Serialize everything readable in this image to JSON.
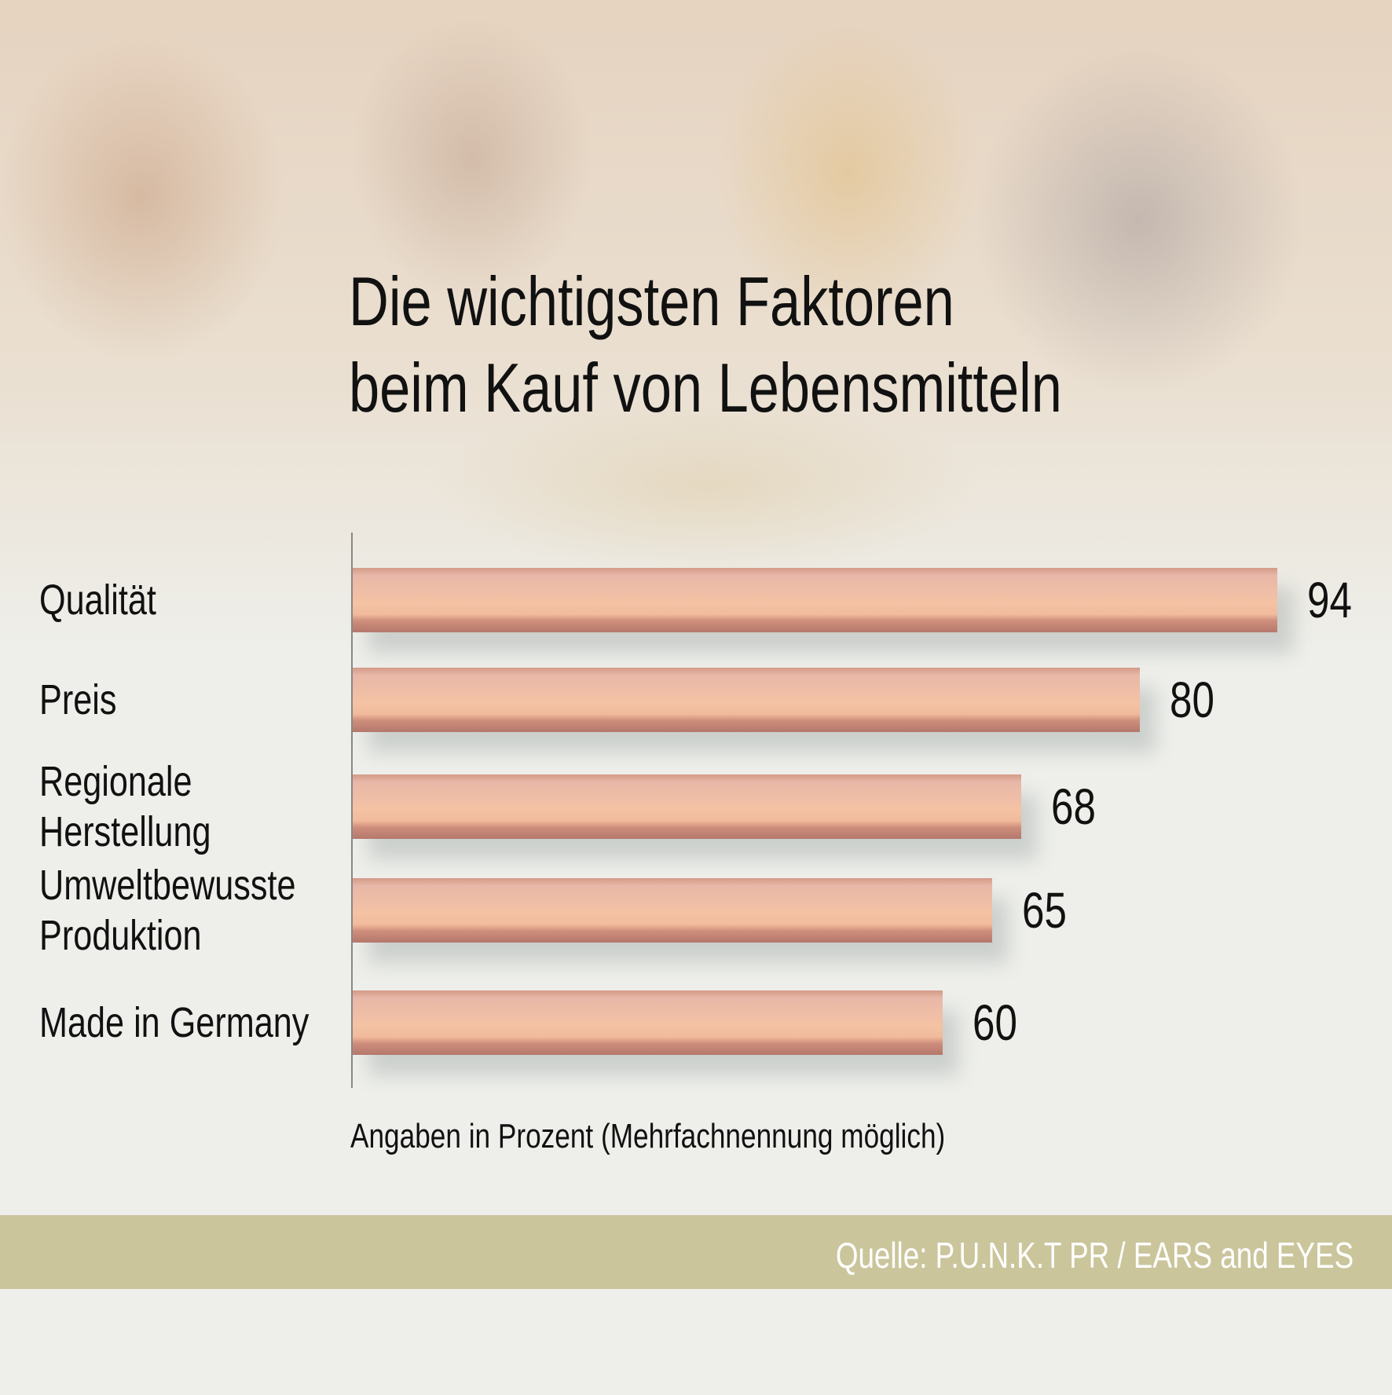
{
  "chart_data": {
    "type": "bar",
    "orientation": "horizontal",
    "title": "Die wichtigsten Faktoren beim Kauf von Lebensmitteln",
    "title_lines": [
      "Die wichtigsten Faktoren",
      "beim Kauf von Lebensmitteln"
    ],
    "categories": [
      [
        "Qualität"
      ],
      [
        "Preis"
      ],
      [
        "Regionale",
        "Herstellung"
      ],
      [
        "Umweltbewusste",
        "Produktion"
      ],
      [
        "Made in Germany"
      ]
    ],
    "values": [
      94,
      80,
      68,
      65,
      60
    ],
    "value_labels": [
      "94",
      "80",
      "68",
      "65",
      "60"
    ],
    "xlabel": "Angaben in Prozent (Mehrfachnennung möglich)",
    "xlim": [
      0,
      100
    ],
    "grid": false,
    "bar_color": "#f1bb9c"
  },
  "footer": {
    "source": "Quelle: P.U.N.K.T PR / EARS and EYES",
    "band_color": "#cbc59c"
  }
}
